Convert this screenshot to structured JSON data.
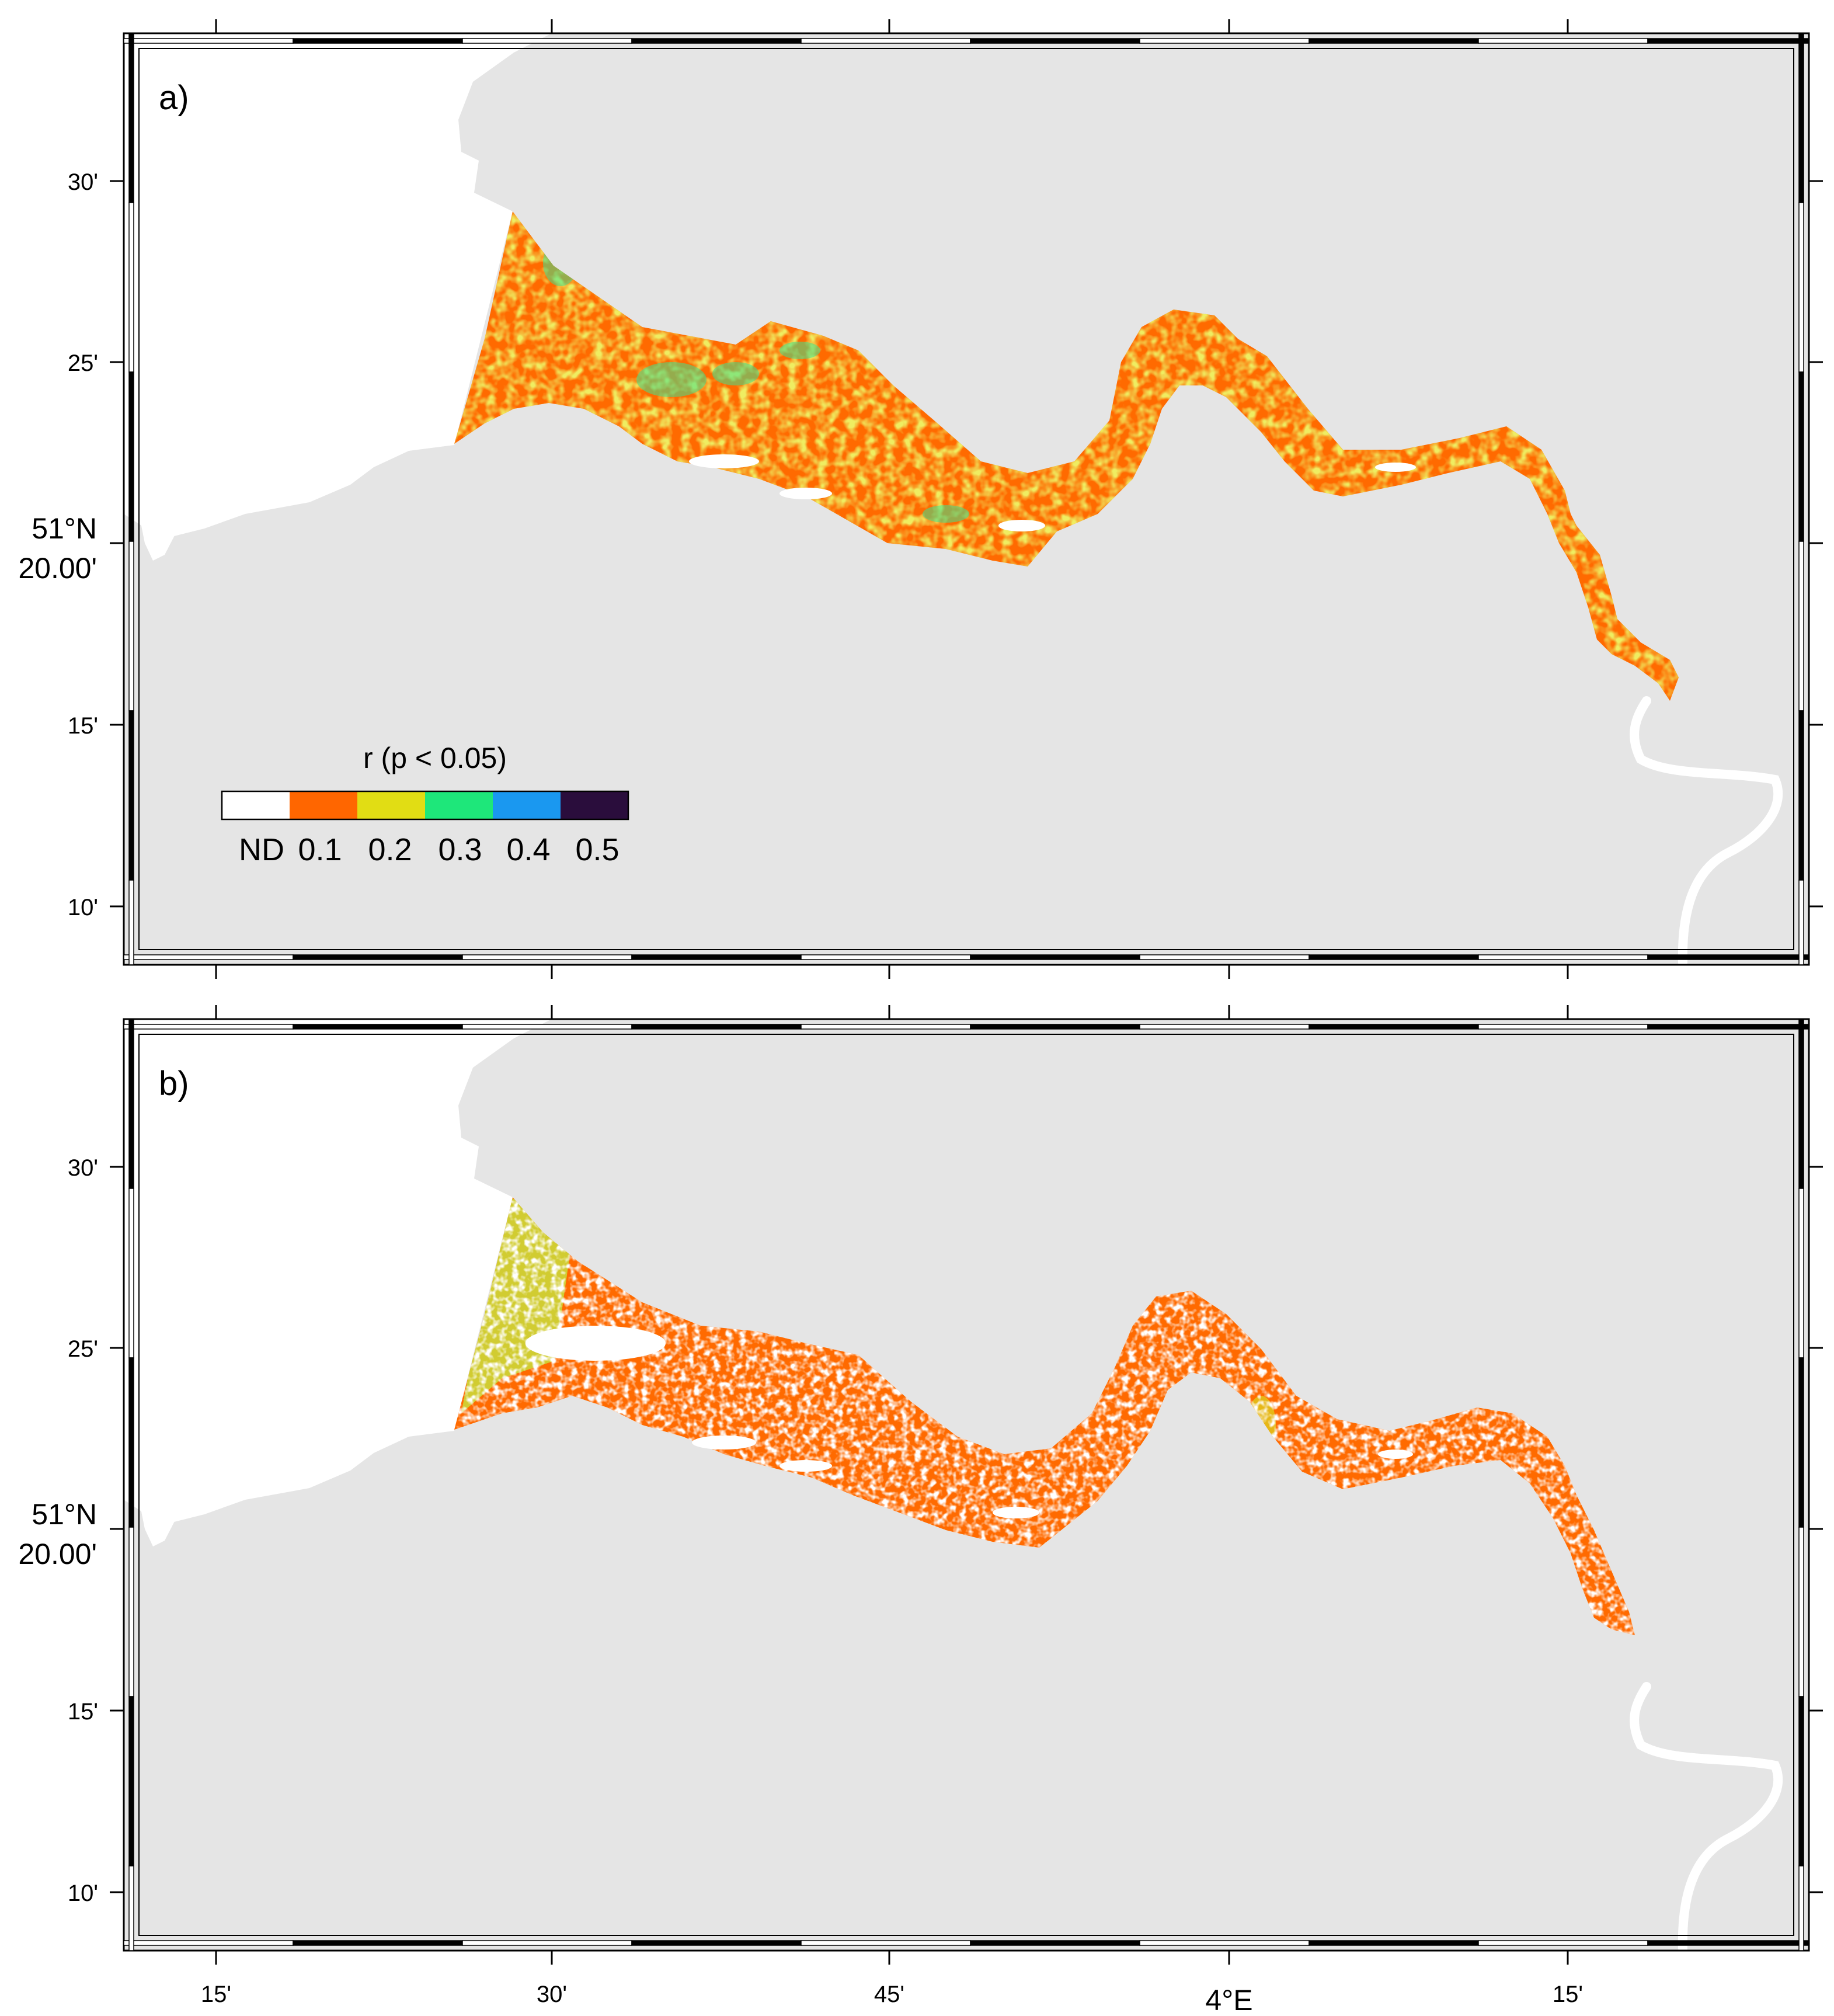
{
  "panels": [
    {
      "id": "a",
      "label": "a)",
      "legend": {
        "title": "r (p < 0.05)",
        "labels": [
          "ND",
          "0.1",
          "0.2",
          "0.3",
          "0.4",
          "0.5"
        ]
      }
    },
    {
      "id": "b",
      "label": "b)"
    }
  ],
  "legend_colors": [
    "#ffffff",
    "#ff6600",
    "#e1dd14",
    "#1ee77a",
    "#1a98f0",
    "#2a0d3c"
  ],
  "land_color": "#e5e5e5",
  "water_color": "#ffffff",
  "map_colors": {
    "orange": "#ff6a00",
    "yellow": "#dcd820",
    "yellow_green": "#c9dd3a",
    "green": "#3ee28c"
  },
  "lat_labels": {
    "l30": "30'",
    "l25": "25'",
    "l20a": "51°N",
    "l20b": "20.00'",
    "l15": "15'",
    "l10": "10'"
  },
  "lon_labels": [
    "15'",
    "30'",
    "45'",
    "4°E",
    "15'"
  ],
  "icons": {
    "frame": "map-frame-checkerboard",
    "legend": "colorbar"
  }
}
